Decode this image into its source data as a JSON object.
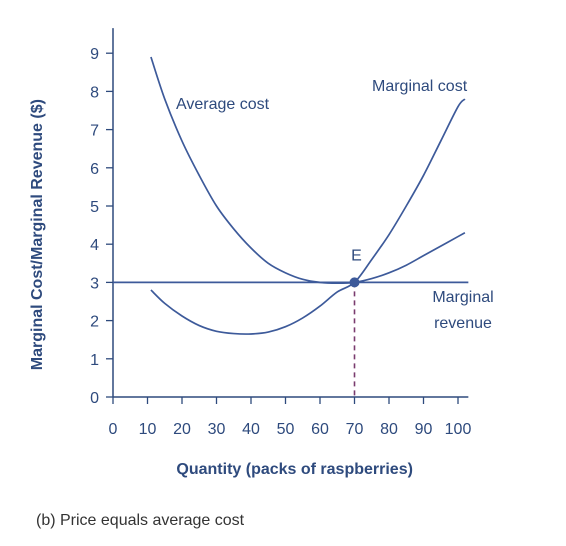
{
  "caption": "(b) Price equals average cost",
  "colors": {
    "axis": "#2e4a7d",
    "curve": "#3d5a9a",
    "point": "#3d5a9a",
    "dashed": "#7a3b6e"
  },
  "chart_data": {
    "type": "line",
    "xlabel": "Quantity (packs of raspberries)",
    "ylabel": "Marginal Cost/Marginal Revenue ($)",
    "xlim": [
      0,
      103
    ],
    "ylim": [
      0,
      9.5
    ],
    "x_ticks": [
      0,
      10,
      20,
      30,
      40,
      50,
      60,
      70,
      80,
      90,
      100
    ],
    "y_ticks": [
      0,
      1,
      2,
      3,
      4,
      5,
      6,
      7,
      8,
      9
    ],
    "grid": false,
    "series": [
      {
        "name": "Average cost",
        "label": "Average cost",
        "x": [
          11,
          15,
          20,
          25,
          30,
          35,
          40,
          45,
          50,
          55,
          60,
          65,
          70,
          75,
          80,
          85,
          90,
          95,
          100,
          102
        ],
        "y": [
          8.9,
          7.8,
          6.7,
          5.8,
          5.0,
          4.4,
          3.9,
          3.5,
          3.25,
          3.08,
          3.0,
          2.98,
          3.0,
          3.1,
          3.25,
          3.45,
          3.7,
          3.95,
          4.2,
          4.3
        ]
      },
      {
        "name": "Marginal cost",
        "label": "Marginal cost",
        "x": [
          11,
          15,
          20,
          25,
          30,
          35,
          40,
          45,
          50,
          55,
          60,
          65,
          70,
          75,
          80,
          85,
          90,
          95,
          100,
          102
        ],
        "y": [
          2.8,
          2.45,
          2.12,
          1.87,
          1.72,
          1.66,
          1.65,
          1.7,
          1.84,
          2.07,
          2.38,
          2.75,
          3.0,
          3.6,
          4.25,
          5.0,
          5.8,
          6.7,
          7.6,
          7.8
        ]
      },
      {
        "name": "Marginal revenue",
        "label": "Marginal\nrevenue",
        "x": [
          0,
          103
        ],
        "y": [
          3,
          3
        ]
      }
    ],
    "points": [
      {
        "label": "E",
        "x": 70,
        "y": 3
      }
    ],
    "annotations": [
      {
        "type": "dashed-vertical",
        "x": 70,
        "from_y": 0,
        "to_y": 3
      }
    ]
  }
}
